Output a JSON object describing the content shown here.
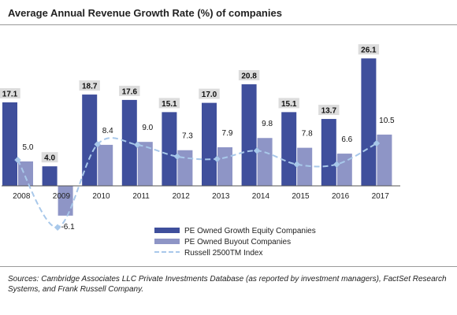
{
  "title": "Average Annual Revenue Growth Rate (%) of companies",
  "source": "Sources: Cambridge Associates LLC Private Investments Database (as reported by investment managers), FactSet Research Systems, and Frank Russell Company.",
  "colors": {
    "growth": "#3f4f9c",
    "buyout": "#8e95c6",
    "russell": "#a8c8ea",
    "label_box": "#dcdcdc"
  },
  "chart_data": {
    "type": "bar",
    "categories": [
      "2008",
      "2009",
      "2010",
      "2011",
      "2012",
      "2013",
      "2014",
      "2015",
      "2016",
      "2017"
    ],
    "series": [
      {
        "name": "PE Owned Growth Equity Companies",
        "kind": "bar",
        "values": [
          17.1,
          4.0,
          18.7,
          17.6,
          15.1,
          17.0,
          20.8,
          15.1,
          13.7,
          26.1
        ],
        "labels": [
          "17.1",
          "4.0",
          "18.7",
          "17.6",
          "15.1",
          "17.0",
          "20.8",
          "15.1",
          "13.7",
          "26.1"
        ]
      },
      {
        "name": "PE Owned Buyout Companies",
        "kind": "bar",
        "values": [
          5.0,
          -6.1,
          8.4,
          9.0,
          7.3,
          7.9,
          9.8,
          7.8,
          6.6,
          10.5
        ],
        "labels": [
          "5.0",
          "-6.1",
          "8.4",
          "9.0",
          "7.3",
          "7.9",
          "9.8",
          "7.8",
          "6.6",
          "10.5"
        ]
      },
      {
        "name": "Russell 2500TM Index",
        "kind": "line",
        "style": "dashed",
        "values": [
          5.3,
          -8.5,
          8.5,
          8.4,
          6.0,
          5.5,
          7.2,
          4.4,
          4.4,
          8.7
        ]
      }
    ],
    "ylim": [
      -9,
      28
    ],
    "legend": "bottom-center",
    "grid": false
  }
}
